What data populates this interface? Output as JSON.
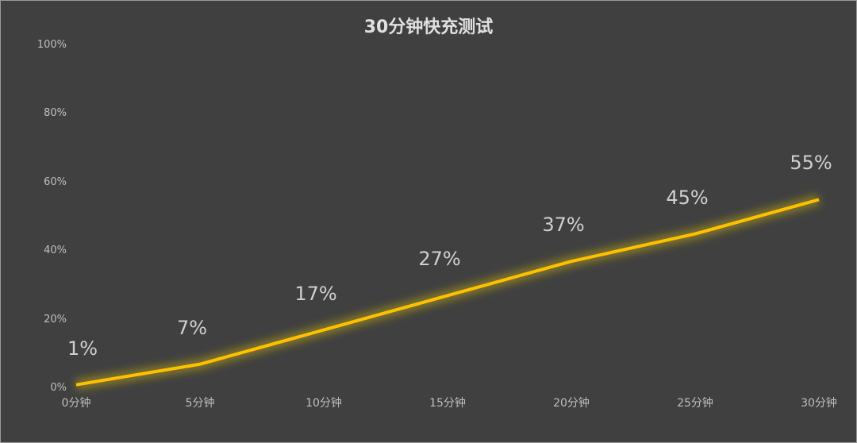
{
  "chart_data": {
    "type": "line",
    "title": "30分钟快充测试",
    "xlabel": "",
    "ylabel": "",
    "categories": [
      "0分钟",
      "5分钟",
      "10分钟",
      "15分钟",
      "20分钟",
      "25分钟",
      "30分钟"
    ],
    "values": [
      1,
      7,
      17,
      27,
      37,
      45,
      55
    ],
    "data_labels": [
      "1%",
      "7%",
      "17%",
      "27%",
      "37%",
      "45%",
      "55%"
    ],
    "yticks": [
      "0%",
      "20%",
      "40%",
      "60%",
      "80%",
      "100%"
    ],
    "ylim": [
      0,
      100
    ],
    "grid": false,
    "legend": null,
    "line_color": "#FFC000",
    "background": "#404040"
  }
}
